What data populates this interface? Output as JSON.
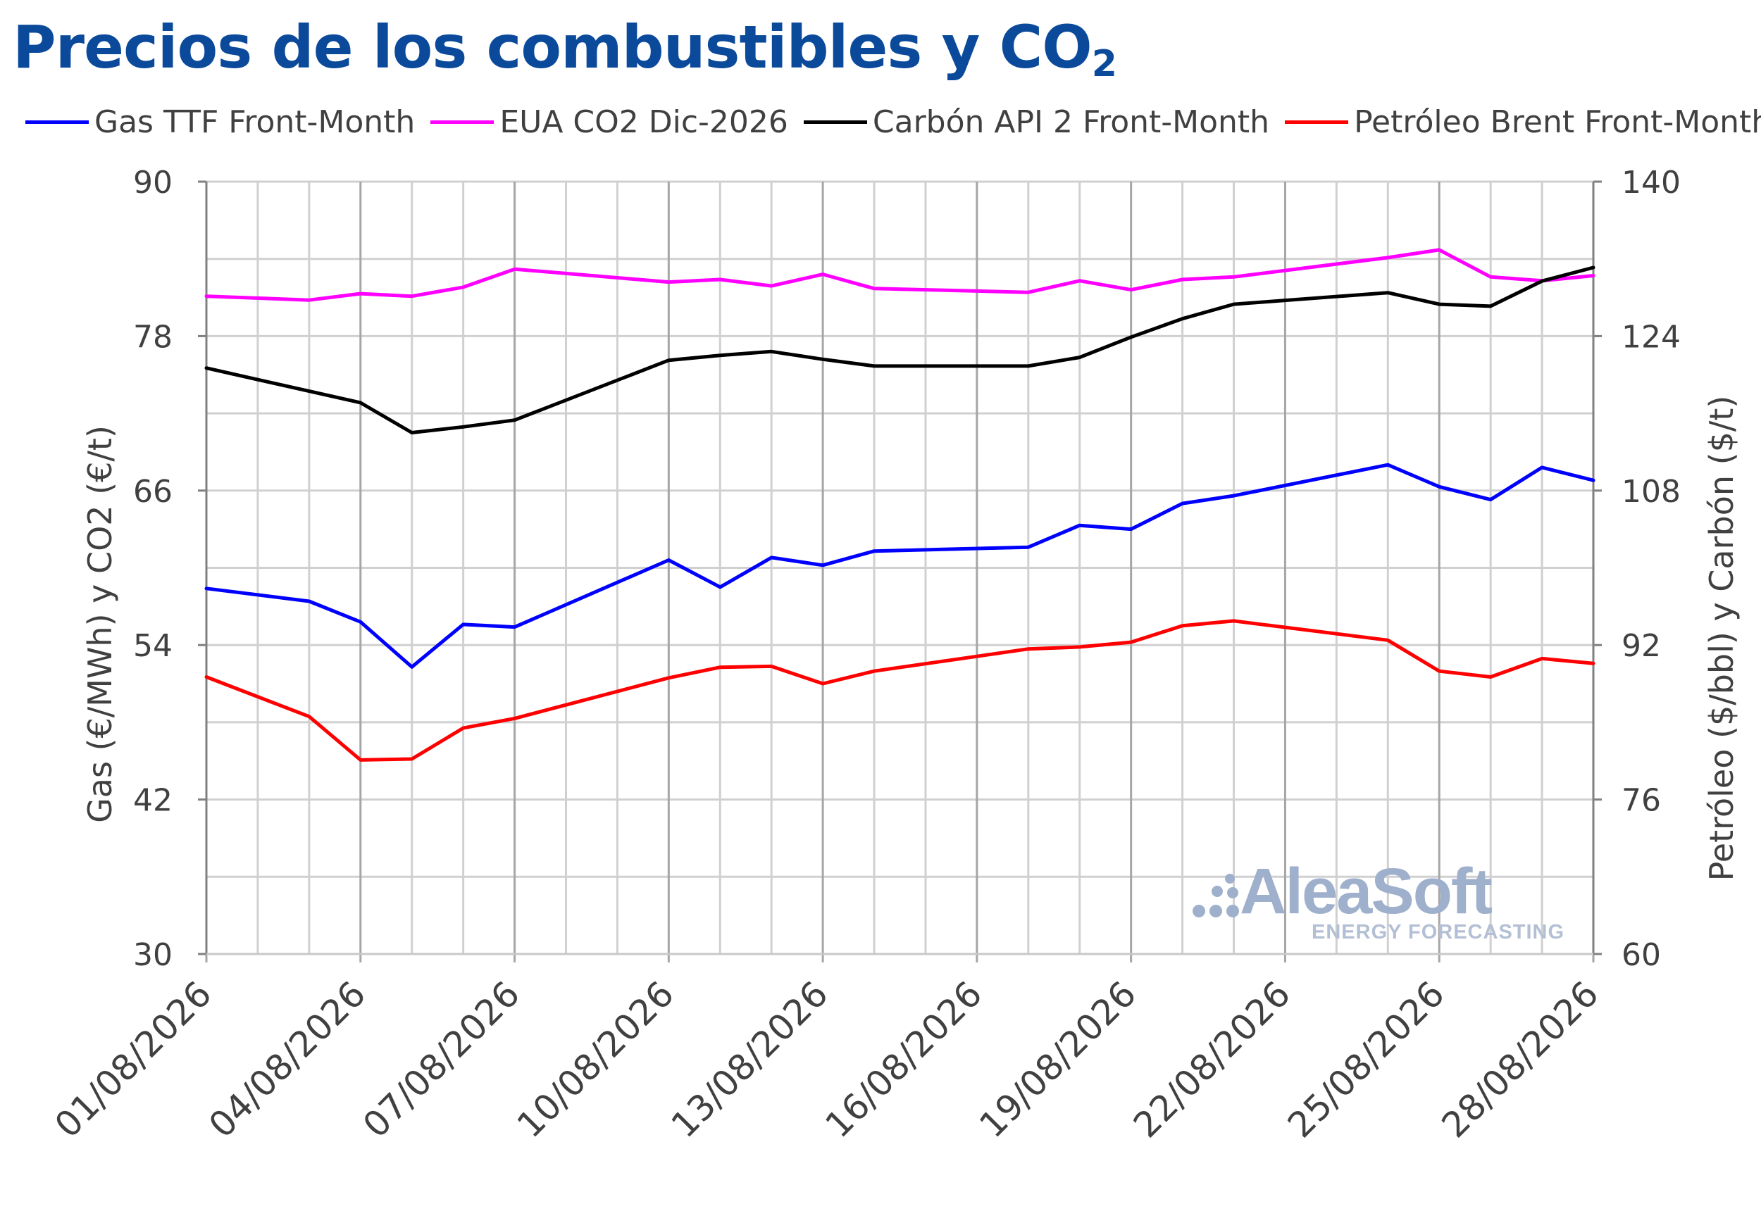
{
  "chart_data": {
    "type": "line",
    "title_main": "Precios de los combustibles y CO",
    "title_sub": "2",
    "ylabel_left": "Gas (€/MWh) y CO2 (€/t)",
    "ylabel_right": "Petróleo ($/bbl) y Carbón ($/t)",
    "ylim_left": [
      30,
      90
    ],
    "yticks_left": [
      "90",
      "78",
      "66",
      "54",
      "42",
      "30"
    ],
    "ylim_right": [
      60,
      140
    ],
    "yticks_right": [
      "140",
      "124",
      "108",
      "92",
      "76",
      "60"
    ],
    "x_tick_labels": [
      "01/08/2026",
      "04/08/2026",
      "07/08/2026",
      "10/08/2026",
      "13/08/2026",
      "16/08/2026",
      "19/08/2026",
      "22/08/2026",
      "25/08/2026",
      "28/08/2026"
    ],
    "grid": true,
    "legend_position": "top",
    "series": [
      {
        "name": "Gas TTF Front-Month",
        "axis": "left",
        "color": "#0000ff",
        "points": [
          [
            "01/08/2026",
            58.4
          ],
          [
            "03/08/2026",
            57.4
          ],
          [
            "04/08/2026",
            55.8
          ],
          [
            "05/08/2026",
            52.3
          ],
          [
            "06/08/2026",
            55.6
          ],
          [
            "07/08/2026",
            55.4
          ],
          [
            "10/08/2026",
            60.6
          ],
          [
            "11/08/2026",
            58.5
          ],
          [
            "12/08/2026",
            60.8
          ],
          [
            "13/08/2026",
            60.2
          ],
          [
            "14/08/2026",
            61.3
          ],
          [
            "17/08/2026",
            61.6
          ],
          [
            "18/08/2026",
            63.3
          ],
          [
            "19/08/2026",
            63.0
          ],
          [
            "20/08/2026",
            65.0
          ],
          [
            "21/08/2026",
            65.6
          ],
          [
            "24/08/2026",
            68.0
          ],
          [
            "25/08/2026",
            66.3
          ],
          [
            "26/08/2026",
            65.3
          ],
          [
            "27/08/2026",
            67.8
          ],
          [
            "28/08/2026",
            66.8
          ]
        ]
      },
      {
        "name": "EUA CO2 Dic-2026",
        "axis": "left",
        "color": "#ff00ff",
        "points": [
          [
            "01/08/2026",
            81.1
          ],
          [
            "03/08/2026",
            80.8
          ],
          [
            "04/08/2026",
            81.3
          ],
          [
            "05/08/2026",
            81.1
          ],
          [
            "06/08/2026",
            81.8
          ],
          [
            "07/08/2026",
            83.2
          ],
          [
            "10/08/2026",
            82.2
          ],
          [
            "11/08/2026",
            82.4
          ],
          [
            "12/08/2026",
            81.9
          ],
          [
            "13/08/2026",
            82.8
          ],
          [
            "14/08/2026",
            81.7
          ],
          [
            "17/08/2026",
            81.4
          ],
          [
            "18/08/2026",
            82.3
          ],
          [
            "19/08/2026",
            81.6
          ],
          [
            "20/08/2026",
            82.4
          ],
          [
            "21/08/2026",
            82.6
          ],
          [
            "24/08/2026",
            84.1
          ],
          [
            "25/08/2026",
            84.7
          ],
          [
            "26/08/2026",
            82.6
          ],
          [
            "27/08/2026",
            82.3
          ],
          [
            "28/08/2026",
            82.7
          ]
        ]
      },
      {
        "name": "Carbón API 2 Front-Month",
        "axis": "right",
        "color": "#000000",
        "points": [
          [
            "01/08/2026",
            120.7
          ],
          [
            "03/08/2026",
            118.3
          ],
          [
            "04/08/2026",
            117.1
          ],
          [
            "05/08/2026",
            114.0
          ],
          [
            "06/08/2026",
            114.6
          ],
          [
            "07/08/2026",
            115.3
          ],
          [
            "10/08/2026",
            121.5
          ],
          [
            "11/08/2026",
            122.0
          ],
          [
            "12/08/2026",
            122.4
          ],
          [
            "13/08/2026",
            121.6
          ],
          [
            "14/08/2026",
            120.9
          ],
          [
            "17/08/2026",
            120.9
          ],
          [
            "18/08/2026",
            121.8
          ],
          [
            "19/08/2026",
            123.9
          ],
          [
            "20/08/2026",
            125.8
          ],
          [
            "21/08/2026",
            127.3
          ],
          [
            "24/08/2026",
            128.5
          ],
          [
            "25/08/2026",
            127.3
          ],
          [
            "26/08/2026",
            127.1
          ],
          [
            "27/08/2026",
            129.7
          ],
          [
            "28/08/2026",
            131.1
          ]
        ]
      },
      {
        "name": "Petróleo Brent Front-Month",
        "axis": "right",
        "color": "#ff0000",
        "points": [
          [
            "01/08/2026",
            88.7
          ],
          [
            "03/08/2026",
            84.6
          ],
          [
            "04/08/2026",
            80.1
          ],
          [
            "05/08/2026",
            80.2
          ],
          [
            "06/08/2026",
            83.4
          ],
          [
            "07/08/2026",
            84.4
          ],
          [
            "10/08/2026",
            88.6
          ],
          [
            "11/08/2026",
            89.7
          ],
          [
            "12/08/2026",
            89.8
          ],
          [
            "13/08/2026",
            88.0
          ],
          [
            "14/08/2026",
            89.3
          ],
          [
            "17/08/2026",
            91.6
          ],
          [
            "18/08/2026",
            91.8
          ],
          [
            "19/08/2026",
            92.3
          ],
          [
            "20/08/2026",
            94.0
          ],
          [
            "21/08/2026",
            94.5
          ],
          [
            "24/08/2026",
            92.5
          ],
          [
            "25/08/2026",
            89.3
          ],
          [
            "26/08/2026",
            88.7
          ],
          [
            "27/08/2026",
            90.6
          ],
          [
            "28/08/2026",
            90.1
          ]
        ]
      }
    ]
  },
  "watermark": {
    "brand": "AleaSoft",
    "tagline": "ENERGY FORECASTING",
    "color": "#9fb0cc"
  }
}
